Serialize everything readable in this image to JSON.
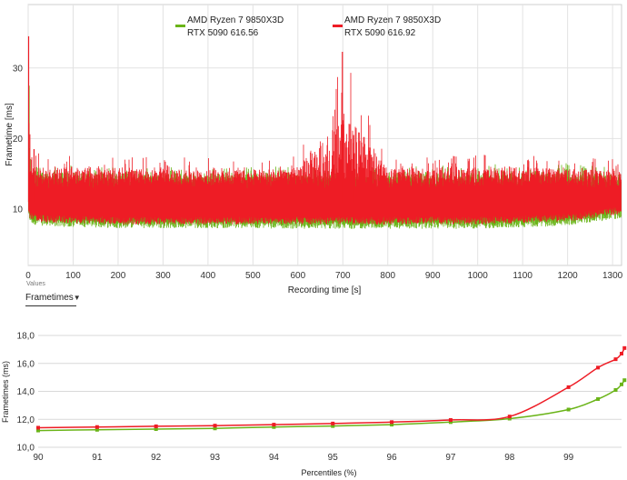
{
  "top_chart": {
    "ylabel": "Frametime [ms]",
    "xlabel": "Recording time [s]",
    "y_ticks": [
      "10",
      "20",
      "30"
    ],
    "x_ticks": [
      "0",
      "100",
      "200",
      "300",
      "400",
      "500",
      "600",
      "700",
      "800",
      "900",
      "1000",
      "1100",
      "1200",
      "1300"
    ],
    "legend": [
      {
        "line1": "AMD Ryzen 7 9850X3D",
        "line2": "RTX 5090 616.56",
        "color": "#6ab418"
      },
      {
        "line1": "AMD Ryzen 7 9850X3D",
        "line2": "RTX 5090 616.92",
        "color": "#ee1c25"
      }
    ]
  },
  "controls": {
    "values_label": "Values",
    "dropdown_value": "Frametimes"
  },
  "bottom_chart": {
    "ylabel": "Frametimes (ms)",
    "xlabel": "Percentiles (%)",
    "y_ticks": [
      "10,0",
      "12,0",
      "14,0",
      "16,0",
      "18,0"
    ],
    "x_ticks": [
      "90",
      "91",
      "92",
      "93",
      "94",
      "95",
      "96",
      "97",
      "98",
      "99"
    ]
  },
  "chart_data": [
    {
      "type": "line",
      "title": "",
      "xlabel": "Recording time [s]",
      "ylabel": "Frametime [ms]",
      "xlim": [
        0,
        1320
      ],
      "ylim": [
        2,
        39
      ],
      "grid": true,
      "legend_position": "top-center",
      "series": [
        {
          "name": "AMD Ryzen 7 9850X3D RTX 5090 616.56",
          "color": "#6ab418",
          "x": [
            0,
            10,
            50,
            200,
            400,
            600,
            800,
            1000,
            1200,
            1320
          ],
          "y_min": [
            8.5,
            7.8,
            7.5,
            7.3,
            7.3,
            7.2,
            7.2,
            7.2,
            7.6,
            8.7
          ],
          "y_max": [
            27.5,
            17.0,
            16.5,
            16.2,
            16.0,
            16.0,
            16.0,
            16.3,
            16.5,
            16.0
          ]
        },
        {
          "name": "AMD Ryzen 7 9850X3D RTX 5090 616.92",
          "color": "#ee1c25",
          "x": [
            0,
            10,
            50,
            200,
            400,
            600,
            700,
            800,
            1000,
            1200,
            1320
          ],
          "y_min": [
            9.0,
            8.3,
            8.0,
            7.8,
            7.8,
            7.8,
            7.8,
            7.8,
            7.8,
            8.2,
            9.3
          ],
          "y_max": [
            34.5,
            18.0,
            17.8,
            17.5,
            17.3,
            17.5,
            32.3,
            17.5,
            17.8,
            17.8,
            17.0
          ]
        }
      ]
    },
    {
      "type": "line",
      "title": "",
      "xlabel": "Percentiles (%)",
      "ylabel": "Frametimes (ms)",
      "xlim": [
        90,
        99.9
      ],
      "ylim": [
        10,
        18
      ],
      "grid": true,
      "series": [
        {
          "name": "AMD Ryzen 7 9850X3D RTX 5090 616.56",
          "color": "#6ab418",
          "x": [
            90,
            91,
            92,
            93,
            94,
            95,
            96,
            97,
            98,
            99,
            99.5,
            99.8,
            99.9,
            99.95
          ],
          "y": [
            11.2,
            11.25,
            11.3,
            11.35,
            11.45,
            11.52,
            11.62,
            11.8,
            12.05,
            12.7,
            13.45,
            14.1,
            14.5,
            14.8
          ]
        },
        {
          "name": "AMD Ryzen 7 9850X3D RTX 5090 616.92",
          "color": "#ee1c25",
          "x": [
            90,
            91,
            92,
            93,
            94,
            95,
            96,
            97,
            98,
            99,
            99.5,
            99.8,
            99.9,
            99.95
          ],
          "y": [
            11.4,
            11.45,
            11.5,
            11.55,
            11.62,
            11.7,
            11.8,
            11.95,
            12.2,
            14.3,
            15.7,
            16.3,
            16.7,
            17.1
          ]
        }
      ]
    }
  ]
}
